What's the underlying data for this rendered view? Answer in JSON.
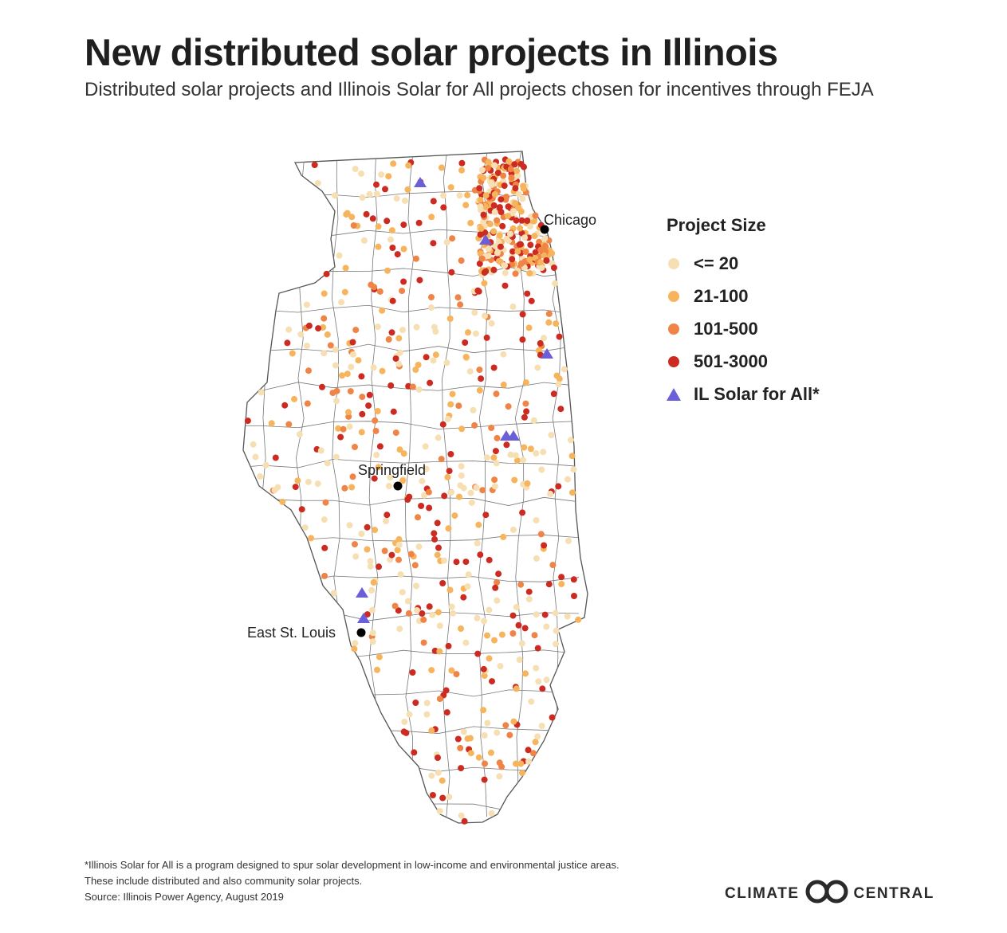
{
  "title": "New distributed solar projects in Illinois",
  "subtitle": "Distributed solar projects and Illinois Solar for All projects chosen for incentives through FEJA",
  "legend": {
    "title": "Project Size",
    "items": [
      {
        "label": "<= 20",
        "color": "#f7dfb4"
      },
      {
        "label": "21-100",
        "color": "#f6b45c"
      },
      {
        "label": "101-500",
        "color": "#ef8446"
      },
      {
        "label": "501-3000",
        "color": "#cc2b22"
      }
    ],
    "solar_for_all": {
      "label": "IL Solar for All*",
      "color": "#6b5fd9"
    }
  },
  "cities": {
    "chicago": "Chicago",
    "springfield": "Springfield",
    "east_st_louis": "East St. Louis"
  },
  "footer": {
    "line1": "*Illinois Solar for All is a program designed to spur solar development in low-income and environmental justice areas.",
    "line2": "These include distributed and also community solar projects.",
    "source": "Source: Illinois Power Agency, August 2019"
  },
  "logo": {
    "left": "CLIMATE",
    "right": "CENTRAL"
  }
}
